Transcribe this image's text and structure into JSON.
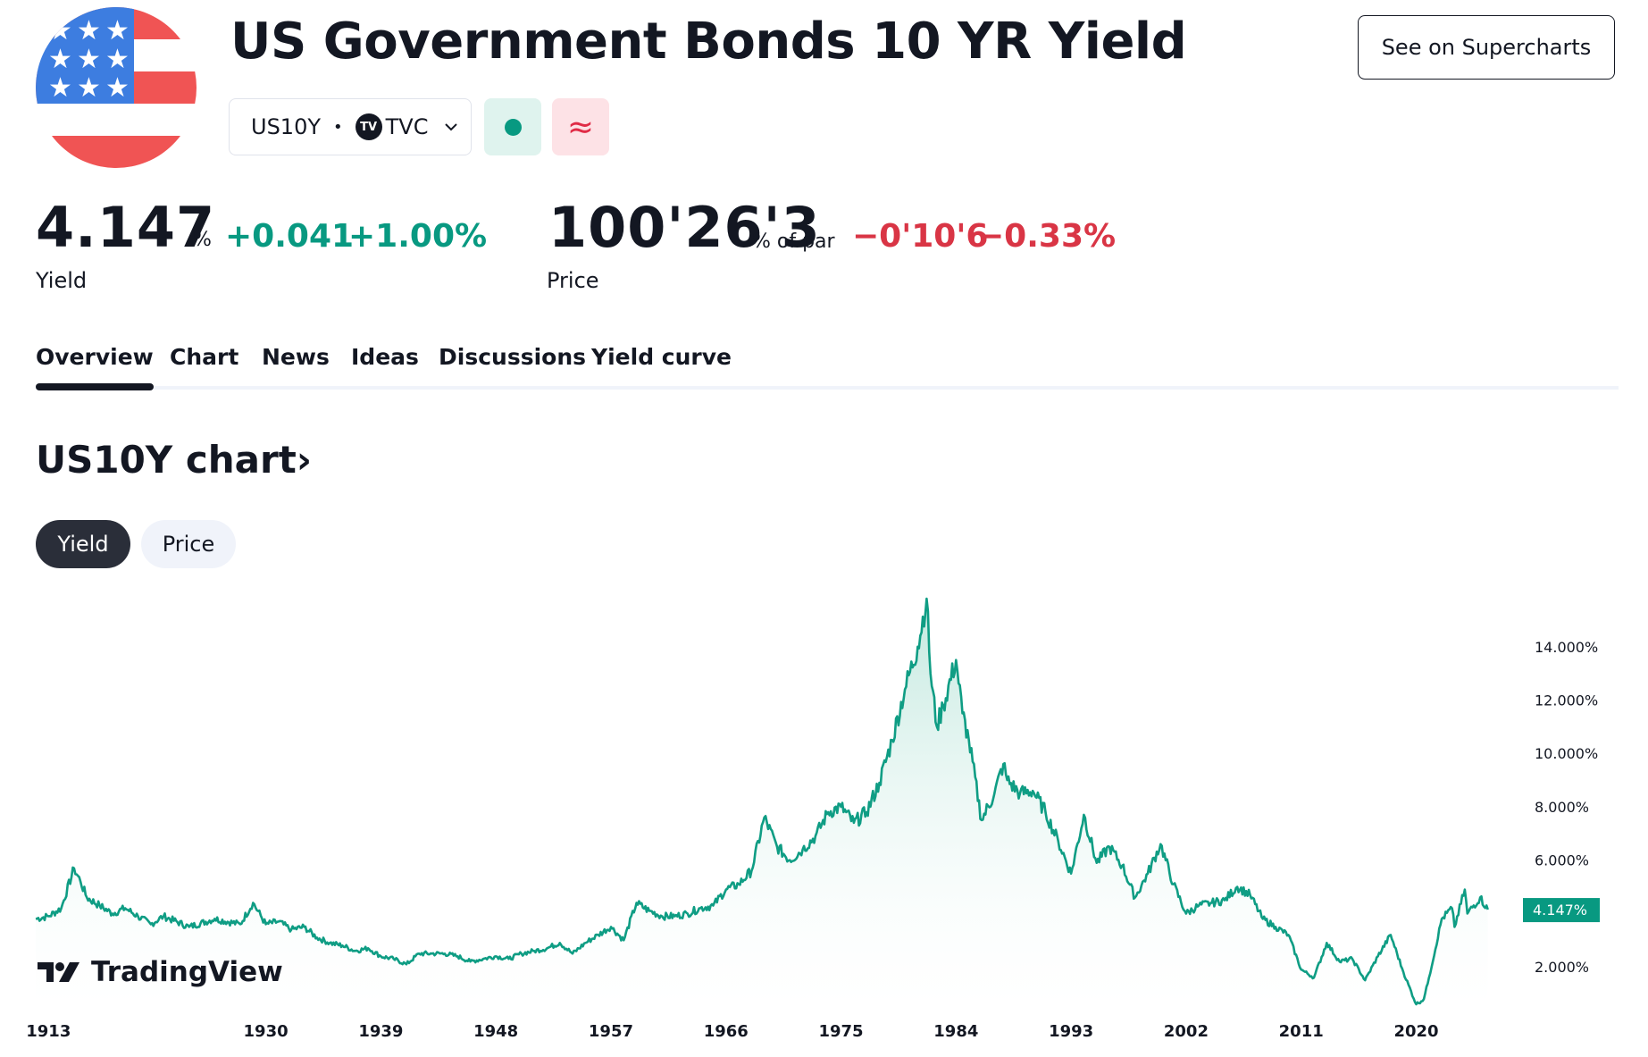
{
  "header": {
    "title": "US Government Bonds 10 YR Yield",
    "supercharts_label": "See on Supercharts",
    "symbol": "US10Y",
    "separator": "•",
    "exchange": "TVC",
    "exchange_logo_text": "TV",
    "delay_symbol": "≈"
  },
  "yield_quote": {
    "value": "4.147",
    "unit": "%",
    "change": "+0.041",
    "change_pct": "+1.00%",
    "label": "Yield"
  },
  "price_quote": {
    "value": "100'26'3",
    "unit": "% of par",
    "change": "−0'10'6",
    "change_pct": "−0.33%",
    "label": "Price"
  },
  "tabs": [
    "Overview",
    "Chart",
    "News",
    "Ideas",
    "Discussions",
    "Yield curve"
  ],
  "active_tab": "Overview",
  "chart_section": {
    "title": "US10Y chart",
    "arrow": "›",
    "toggle_active": "Yield",
    "toggle_inactive": "Price"
  },
  "watermark": "TradingView",
  "colors": {
    "up": "#089981",
    "down": "#d93545",
    "line": "#0f9d84",
    "text": "#131722"
  },
  "chart_data": {
    "type": "area",
    "title": "",
    "xlabel": "",
    "ylabel": "",
    "x_tick_labels": [
      "1913",
      "1930",
      "1939",
      "1948",
      "1957",
      "1966",
      "1975",
      "1984",
      "1993",
      "2002",
      "2011",
      "2020"
    ],
    "y_tick_labels": [
      "2.000%",
      "6.000%",
      "8.000%",
      "10.000%",
      "12.000%",
      "14.000%"
    ],
    "y_ticks": [
      2,
      6,
      8,
      10,
      12,
      14
    ],
    "ylim": [
      0.4,
      15.8
    ],
    "xlim": [
      1912,
      2028
    ],
    "last_value_label": "4.147%",
    "last_value": 4.147,
    "series": [
      {
        "x": [
          1912,
          1913,
          1914,
          1915,
          1915.5,
          1916,
          1917,
          1918,
          1919,
          1920,
          1921,
          1922,
          1924,
          1926,
          1928,
          1929,
          1930,
          1931,
          1932,
          1933,
          1934,
          1935,
          1936,
          1937,
          1938,
          1939,
          1940,
          1941,
          1942,
          1943,
          1944,
          1945,
          1946,
          1947,
          1948,
          1949,
          1950,
          1951,
          1952,
          1953,
          1954,
          1955,
          1956,
          1957,
          1958,
          1959,
          1960,
          1961,
          1962,
          1963,
          1964,
          1965,
          1966,
          1967,
          1968,
          1969,
          1970,
          1971,
          1972,
          1973,
          1974,
          1975,
          1976,
          1977,
          1978,
          1979,
          1980,
          1981,
          1981.7,
          1982,
          1982.5,
          1983,
          1984,
          1984.5,
          1985,
          1986,
          1987,
          1987.7,
          1988,
          1989,
          1990,
          1991,
          1992,
          1993,
          1994,
          1995,
          1996,
          1997,
          1998,
          1999,
          2000,
          2001,
          2002,
          2003,
          2004,
          2005,
          2006,
          2007,
          2008,
          2009,
          2010,
          2011,
          2012,
          2013,
          2014,
          2015,
          2016,
          2017,
          2018,
          2019,
          2020,
          2020.6,
          2021,
          2022,
          2022.8,
          2023,
          2023.8,
          2024,
          2025,
          2025.6
        ],
        "values": [
          3.8,
          3.9,
          4.2,
          5.7,
          5.2,
          4.6,
          4.3,
          4.0,
          4.2,
          3.9,
          3.6,
          3.9,
          3.5,
          3.8,
          3.6,
          4.4,
          3.6,
          3.7,
          3.4,
          3.5,
          3.1,
          2.9,
          2.8,
          2.6,
          2.7,
          2.4,
          2.3,
          2.1,
          2.5,
          2.5,
          2.5,
          2.4,
          2.2,
          2.3,
          2.4,
          2.3,
          2.5,
          2.6,
          2.7,
          2.9,
          2.5,
          2.9,
          3.2,
          3.5,
          3.0,
          4.4,
          4.1,
          3.9,
          3.9,
          4.0,
          4.2,
          4.3,
          4.9,
          5.1,
          5.6,
          7.6,
          6.5,
          6.0,
          6.4,
          6.9,
          7.8,
          8.0,
          7.4,
          7.8,
          8.9,
          10.5,
          12.4,
          14.0,
          15.8,
          13.0,
          11.0,
          11.8,
          13.5,
          11.5,
          10.5,
          7.5,
          8.5,
          9.6,
          9.0,
          8.5,
          8.6,
          7.8,
          6.7,
          5.5,
          7.7,
          5.9,
          6.5,
          5.8,
          4.6,
          5.5,
          6.6,
          5.1,
          4.0,
          4.3,
          4.4,
          4.5,
          5.0,
          4.7,
          3.8,
          3.5,
          3.2,
          1.9,
          1.6,
          2.9,
          2.2,
          2.3,
          1.5,
          2.4,
          3.2,
          1.8,
          0.6,
          0.8,
          1.6,
          3.8,
          4.2,
          3.5,
          4.9,
          4.0,
          4.6,
          4.15
        ]
      }
    ]
  }
}
